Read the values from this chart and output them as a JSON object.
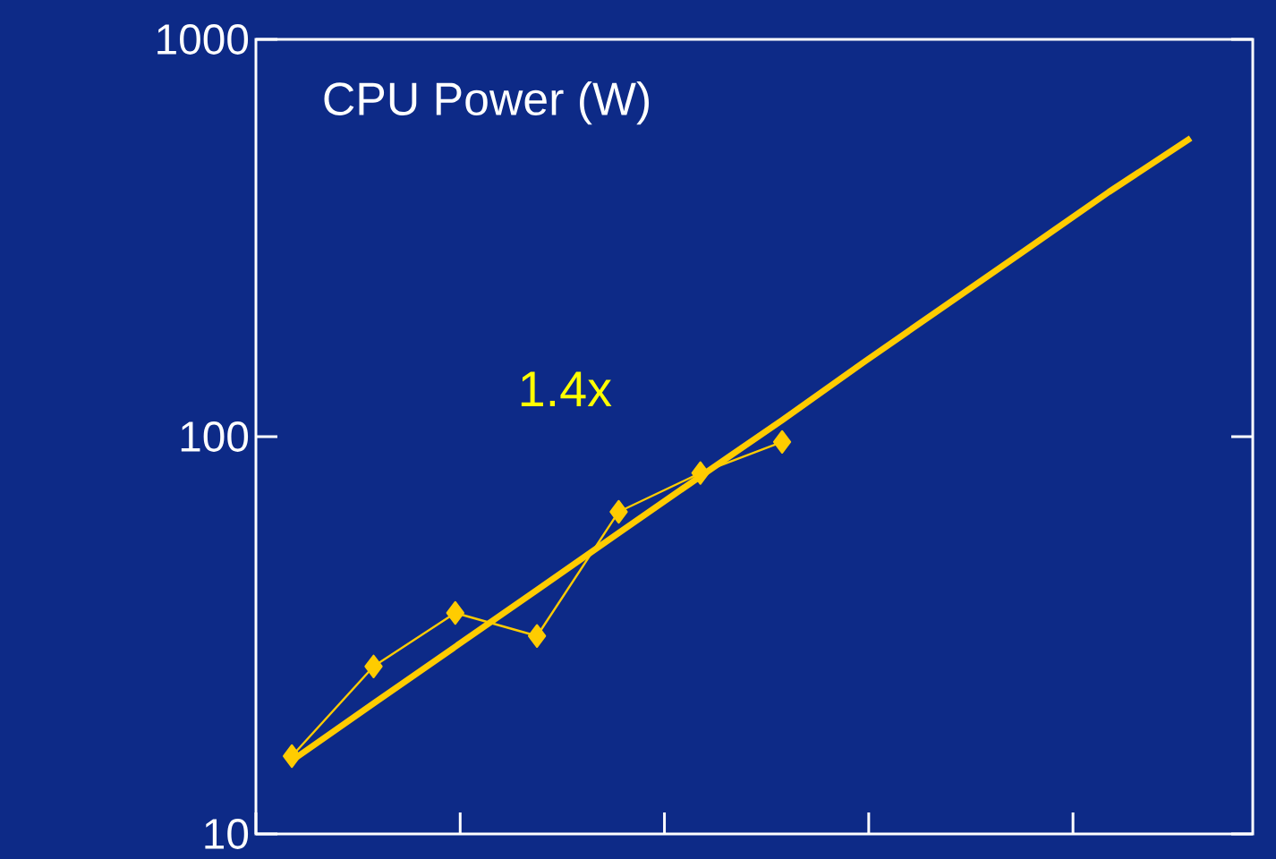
{
  "chart_data": {
    "type": "line",
    "title": "CPU Power (W)",
    "log": true,
    "tick_labels": "y",
    "annotations": [
      "1.4x"
    ],
    "categories": [
      null,
      null,
      null,
      null,
      null,
      null,
      null,
      null,
      null,
      null,
      null,
      null
    ],
    "ylim": [
      10,
      1000
    ],
    "yticks": [
      10,
      100,
      1000
    ],
    "series": [
      {
        "color": "#ffcc00",
        "marker": "diamond",
        "values": [
          15.7,
          26.4,
          36,
          31.5,
          64.7,
          81,
          97,
          null,
          null,
          null,
          null,
          null
        ]
      },
      {
        "color": "#ffcc00",
        "marker": "none",
        "values": [
          15.3,
          21.3,
          29.6,
          41.1,
          57.2,
          79.5,
          110,
          154,
          214,
          297,
          413,
          564
        ]
      }
    ]
  }
}
